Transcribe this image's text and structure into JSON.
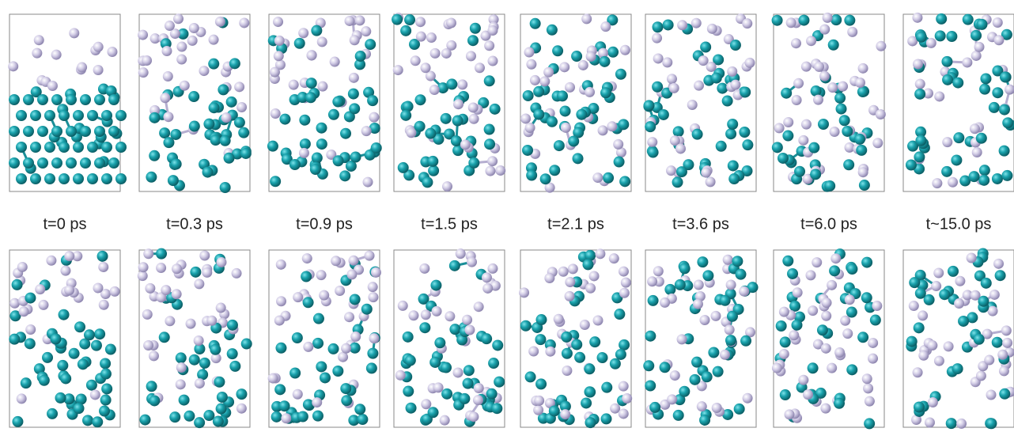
{
  "labels": [
    "t=0 ps",
    "t=0.3 ps",
    "t=0.9 ps",
    "t=1.5 ps",
    "t=2.1 ps",
    "t=3.6 ps",
    "t=6.0 ps",
    "t~15.0 ps"
  ]
}
